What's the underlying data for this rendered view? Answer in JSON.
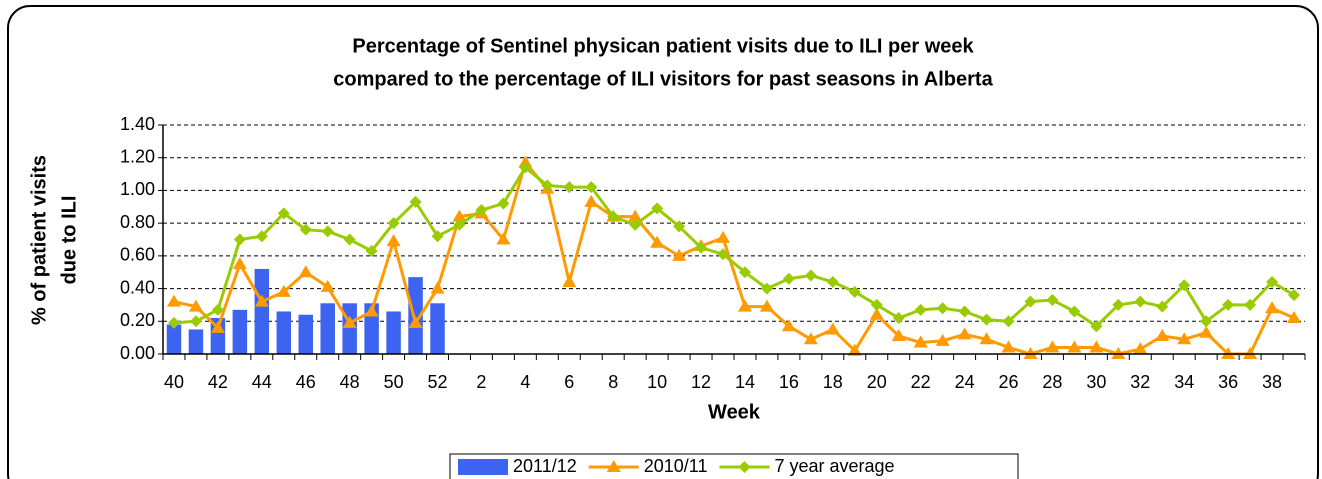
{
  "chart_data": {
    "type": "bar_line",
    "title": [
      "Percentage of Sentinel physican patient visits due to ILI per week",
      "compared to the percentage of ILI visitors for past seasons in Alberta"
    ],
    "y_label": [
      "% of patient visits",
      "due to ILI"
    ],
    "x_label": "Week",
    "categories": [
      "40",
      null,
      "42",
      null,
      "44",
      null,
      "46",
      null,
      "48",
      null,
      "50",
      null,
      "52",
      null,
      "2",
      null,
      "4",
      null,
      "6",
      null,
      "8",
      null,
      "10",
      null,
      "12",
      null,
      "14",
      null,
      "16",
      null,
      "18",
      null,
      "20",
      null,
      "22",
      null,
      "24",
      null,
      "26",
      null,
      "28",
      null,
      "30",
      null,
      "32",
      null,
      "34",
      null,
      "36",
      null,
      "38",
      null
    ],
    "series": [
      {
        "name": "2011/12",
        "kind": "bar",
        "color": "#3c64f0",
        "values": [
          0.18,
          0.15,
          0.22,
          0.27,
          0.52,
          0.26,
          0.24,
          0.31,
          0.31,
          0.31,
          0.26,
          0.47,
          0.31,
          null,
          null,
          null,
          null,
          null,
          null,
          null,
          null,
          null,
          null,
          null,
          null,
          null,
          null,
          null,
          null,
          null,
          null,
          null,
          null,
          null,
          null,
          null,
          null,
          null,
          null,
          null,
          null,
          null,
          null,
          null,
          null,
          null,
          null,
          null,
          null,
          null,
          null,
          null
        ]
      },
      {
        "name": "2010/11",
        "kind": "line",
        "marker": "triangle",
        "color": "#ff9a00",
        "values": [
          0.32,
          0.29,
          0.16,
          0.55,
          0.32,
          0.38,
          0.5,
          0.41,
          0.19,
          0.26,
          0.69,
          0.19,
          0.4,
          0.84,
          0.86,
          0.7,
          1.17,
          1.01,
          0.44,
          0.93,
          0.84,
          0.84,
          0.68,
          0.6,
          0.66,
          0.71,
          0.29,
          0.29,
          0.17,
          0.09,
          0.15,
          0.02,
          0.24,
          0.11,
          0.07,
          0.08,
          0.12,
          0.09,
          0.04,
          0.0,
          0.04,
          0.04,
          0.04,
          0.0,
          0.03,
          0.11,
          0.09,
          0.13,
          0.0,
          0.0,
          0.28,
          0.22
        ]
      },
      {
        "name": "7 year average",
        "kind": "line",
        "marker": "diamond",
        "color": "#99cc00",
        "values": [
          0.19,
          0.2,
          0.27,
          0.7,
          0.72,
          0.86,
          0.76,
          0.75,
          0.7,
          0.63,
          0.8,
          0.93,
          0.72,
          0.79,
          0.88,
          0.92,
          1.14,
          1.03,
          1.02,
          1.02,
          0.84,
          0.79,
          0.89,
          0.78,
          0.65,
          0.61,
          0.5,
          0.4,
          0.46,
          0.48,
          0.44,
          0.38,
          0.3,
          0.22,
          0.27,
          0.28,
          0.26,
          0.21,
          0.2,
          0.32,
          0.33,
          0.26,
          0.17,
          0.3,
          0.32,
          0.29,
          0.42,
          0.2,
          0.3,
          0.3,
          0.44,
          0.36
        ]
      }
    ],
    "ylim": [
      0,
      1.4
    ],
    "yticks": [
      {
        "value": 0,
        "label": "0.00"
      },
      {
        "value": 0.2,
        "label": "0.20"
      },
      {
        "value": 0.4,
        "label": "0.40"
      },
      {
        "value": 0.6,
        "label": "0.60"
      },
      {
        "value": 0.8,
        "label": "0.80"
      },
      {
        "value": 1.0,
        "label": "1.00"
      },
      {
        "value": 1.2,
        "label": "1.20"
      },
      {
        "value": 1.4,
        "label": "1.40"
      }
    ],
    "grid": true,
    "legend": "bottom"
  }
}
